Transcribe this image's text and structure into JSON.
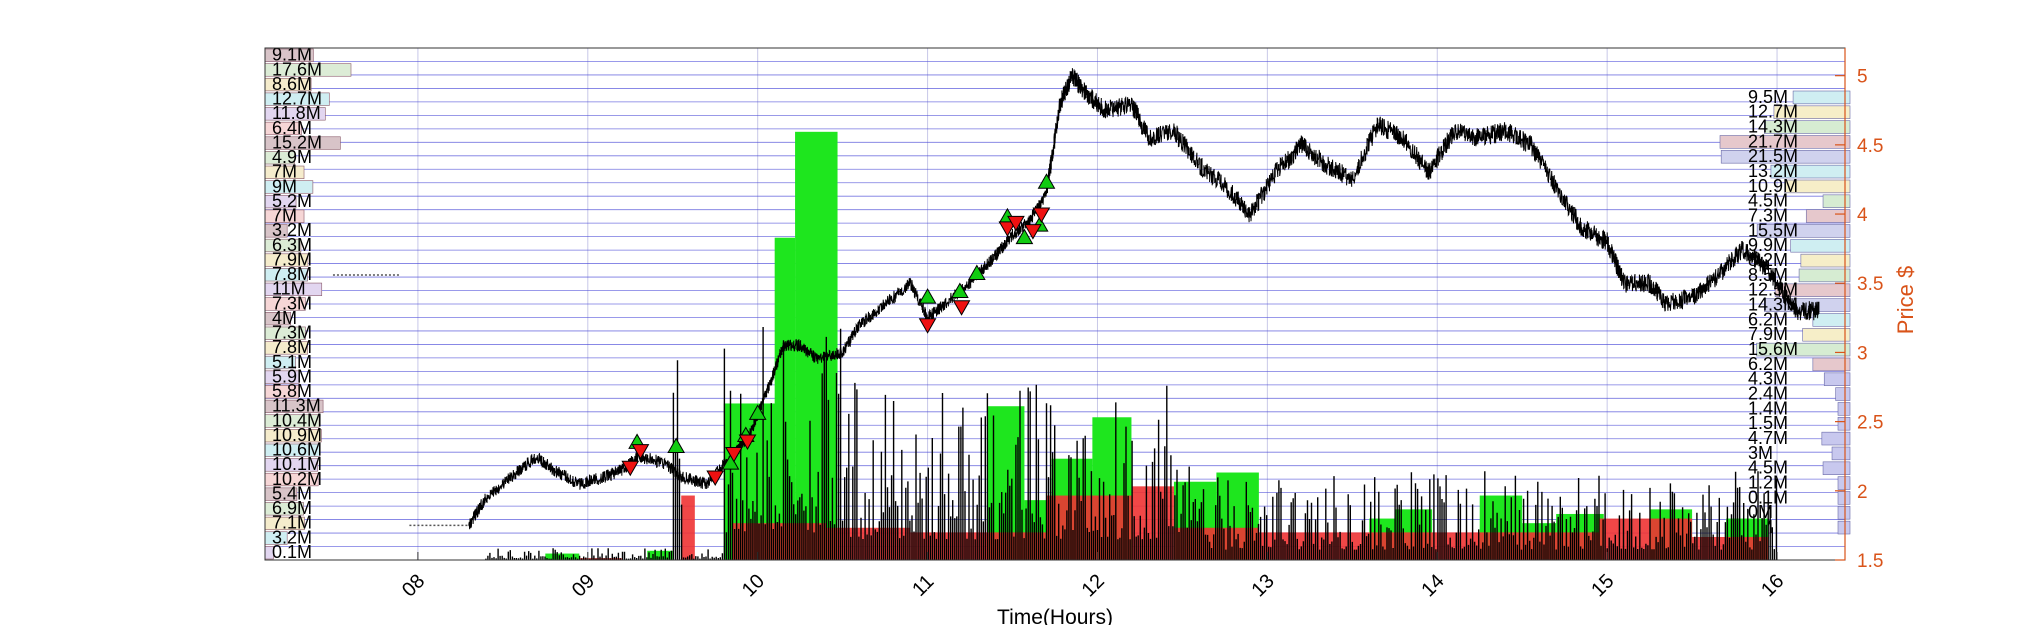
{
  "chart_data": {
    "type": "line",
    "title": "",
    "xlabel": "Time(Hours)",
    "ylabel": "Price $",
    "x_ticks": [
      "08",
      "09",
      "10",
      "11",
      "12",
      "13",
      "14",
      "15",
      "16"
    ],
    "x_range": [
      7.1,
      16.4
    ],
    "y_ticks": [
      1.5,
      2,
      2.5,
      3,
      3.5,
      4,
      4.5,
      5
    ],
    "ylim": [
      1.5,
      5.2
    ],
    "grid": true,
    "colors": {
      "price": "#000000",
      "buy_volume": "#1ee61e",
      "sell_volume": "#ee3333",
      "buy_marker": "#11cc11",
      "sell_marker": "#ee1111",
      "price_axis": "#d95319",
      "grid_h": "#4a4ad8",
      "grid_v": "#c8c8e8"
    },
    "price_series": [
      [
        7.5,
        3.56
      ],
      [
        7.9,
        3.56
      ],
      [
        8.3,
        1.75
      ],
      [
        8.4,
        1.95
      ],
      [
        8.55,
        2.1
      ],
      [
        8.7,
        2.25
      ],
      [
        8.8,
        2.15
      ],
      [
        8.95,
        2.05
      ],
      [
        9.1,
        2.1
      ],
      [
        9.2,
        2.15
      ],
      [
        9.3,
        2.25
      ],
      [
        9.45,
        2.2
      ],
      [
        9.55,
        2.1
      ],
      [
        9.7,
        2.05
      ],
      [
        9.85,
        2.25
      ],
      [
        9.95,
        2.4
      ],
      [
        10.05,
        2.7
      ],
      [
        10.15,
        3.05
      ],
      [
        10.25,
        3.05
      ],
      [
        10.35,
        2.95
      ],
      [
        10.5,
        3.0
      ],
      [
        10.6,
        3.2
      ],
      [
        10.75,
        3.35
      ],
      [
        10.9,
        3.5
      ],
      [
        11.0,
        3.25
      ],
      [
        11.1,
        3.35
      ],
      [
        11.25,
        3.5
      ],
      [
        11.4,
        3.7
      ],
      [
        11.5,
        3.85
      ],
      [
        11.6,
        3.95
      ],
      [
        11.7,
        4.15
      ],
      [
        11.78,
        4.8
      ],
      [
        11.85,
        5.0
      ],
      [
        11.95,
        4.85
      ],
      [
        12.05,
        4.75
      ],
      [
        12.2,
        4.8
      ],
      [
        12.3,
        4.55
      ],
      [
        12.45,
        4.6
      ],
      [
        12.6,
        4.35
      ],
      [
        12.75,
        4.2
      ],
      [
        12.9,
        4.0
      ],
      [
        13.05,
        4.3
      ],
      [
        13.2,
        4.5
      ],
      [
        13.35,
        4.35
      ],
      [
        13.5,
        4.25
      ],
      [
        13.65,
        4.65
      ],
      [
        13.8,
        4.55
      ],
      [
        13.95,
        4.3
      ],
      [
        14.1,
        4.6
      ],
      [
        14.25,
        4.55
      ],
      [
        14.4,
        4.6
      ],
      [
        14.55,
        4.5
      ],
      [
        14.7,
        4.2
      ],
      [
        14.85,
        3.9
      ],
      [
        15.0,
        3.8
      ],
      [
        15.1,
        3.5
      ],
      [
        15.25,
        3.5
      ],
      [
        15.35,
        3.35
      ],
      [
        15.5,
        3.4
      ],
      [
        15.65,
        3.55
      ],
      [
        15.8,
        3.75
      ],
      [
        15.95,
        3.6
      ],
      [
        16.1,
        3.3
      ],
      [
        16.25,
        3.3
      ]
    ],
    "buy_volume_bars": [
      [
        8.75,
        8.95,
        0.07
      ],
      [
        9.35,
        9.5,
        0.1
      ],
      [
        9.8,
        10.2,
        1.7
      ],
      [
        10.1,
        10.22,
        3.5
      ],
      [
        10.22,
        10.47,
        4.65
      ],
      [
        11.35,
        11.57,
        1.67
      ],
      [
        11.57,
        11.73,
        0.65
      ],
      [
        11.73,
        11.97,
        1.1
      ],
      [
        11.97,
        12.2,
        1.55
      ],
      [
        12.45,
        12.7,
        0.85
      ],
      [
        12.7,
        12.95,
        0.95
      ],
      [
        13.6,
        13.75,
        0.45
      ],
      [
        13.75,
        13.97,
        0.55
      ],
      [
        14.25,
        14.5,
        0.7
      ],
      [
        14.5,
        14.7,
        0.4
      ],
      [
        14.7,
        14.98,
        0.5
      ],
      [
        15.25,
        15.5,
        0.55
      ],
      [
        15.7,
        15.95,
        0.45
      ]
    ],
    "sell_volume_bars": [
      [
        8.95,
        9.2,
        0.02
      ],
      [
        9.55,
        9.63,
        0.7
      ],
      [
        9.85,
        10.4,
        0.4
      ],
      [
        10.4,
        10.9,
        0.35
      ],
      [
        10.9,
        11.7,
        0.3
      ],
      [
        11.7,
        12.2,
        0.7
      ],
      [
        12.2,
        12.45,
        0.8
      ],
      [
        12.45,
        12.95,
        0.35
      ],
      [
        12.95,
        13.55,
        0.3
      ],
      [
        13.55,
        14.3,
        0.3
      ],
      [
        14.3,
        14.95,
        0.3
      ],
      [
        14.95,
        15.5,
        0.45
      ],
      [
        15.5,
        15.95,
        0.25
      ]
    ],
    "buy_signals": [
      [
        9.29,
        2.35
      ],
      [
        9.52,
        2.32
      ],
      [
        9.84,
        2.2
      ],
      [
        9.93,
        2.4
      ],
      [
        10.0,
        2.56
      ],
      [
        11.0,
        3.4
      ],
      [
        11.19,
        3.44
      ],
      [
        11.29,
        3.57
      ],
      [
        11.47,
        3.98
      ],
      [
        11.57,
        3.83
      ],
      [
        11.66,
        3.92
      ],
      [
        11.7,
        4.23
      ]
    ],
    "sell_signals": [
      [
        9.25,
        2.17
      ],
      [
        9.31,
        2.29
      ],
      [
        9.75,
        2.1
      ],
      [
        9.86,
        2.27
      ],
      [
        9.94,
        2.36
      ],
      [
        11.0,
        3.2
      ],
      [
        11.2,
        3.33
      ],
      [
        11.47,
        3.9
      ],
      [
        11.52,
        3.94
      ],
      [
        11.62,
        3.88
      ],
      [
        11.67,
        4.0
      ]
    ],
    "volume_profile_left": [
      "9.1M",
      "17.6M",
      "8.6M",
      "12.7M",
      "11.8M",
      "6.4M",
      "15.2M",
      "4.9M",
      "7M",
      "9M",
      "5.2M",
      "7M",
      "3.2M",
      "6.3M",
      "7.9M",
      "7.8M",
      "11M",
      "7.3M",
      "4M",
      "7.3M",
      "7.8M",
      "5.1M",
      "5.9M",
      "5.8M",
      "11.3M",
      "10.4M",
      "10.9M",
      "10.6M",
      "10.1M",
      "10.2M",
      "5.4M",
      "6.9M",
      "7.1M",
      "3.2M",
      "0.1M"
    ],
    "volume_profile_right": [
      "9.5M",
      "12.7M",
      "14.3M",
      "21.7M",
      "21.5M",
      "13.2M",
      "10.9M",
      "4.5M",
      "7.3M",
      "15.5M",
      "9.9M",
      "8.2M",
      "8.5M",
      "12.5M",
      "14.3M",
      "6.2M",
      "7.9M",
      "15.6M",
      "6.2M",
      "4.3M",
      "2.4M",
      "1.4M",
      "1.5M",
      "4.7M",
      "3M",
      "4.5M",
      "1.2M",
      "0.1M",
      "0M",
      "0M"
    ]
  }
}
